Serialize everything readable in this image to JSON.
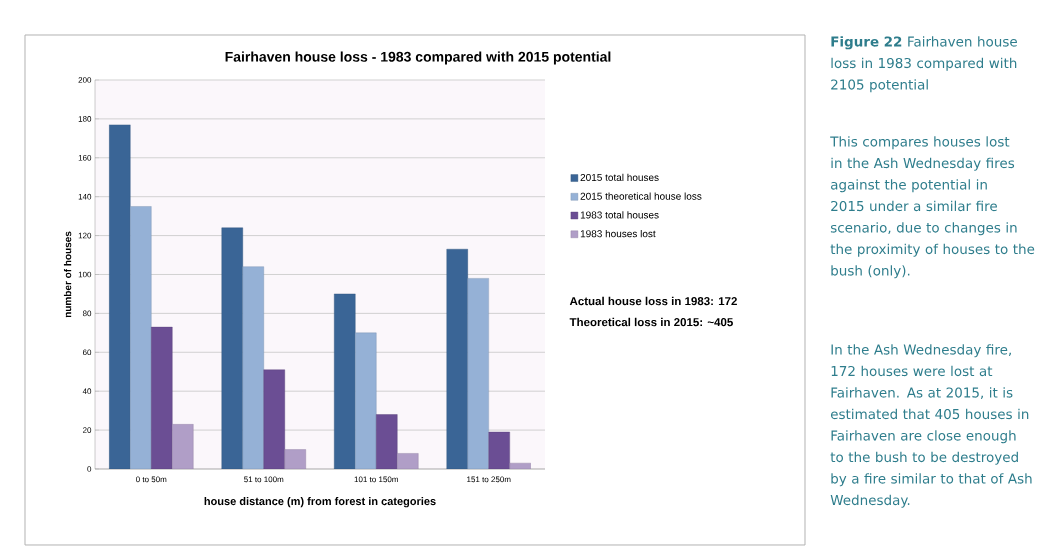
{
  "chart_data": {
    "type": "bar",
    "title": "Fairhaven house loss - 1983 compared with 2015 potential",
    "xlabel": "house distance (m) from forest  in categories",
    "ylabel": "number of houses",
    "categories": [
      "0 to 50m",
      "51 to 100m",
      "101 to 150m",
      "151 to 250m"
    ],
    "series": [
      {
        "name": "2015 total houses",
        "color": "#3a6596",
        "values": [
          177,
          124,
          90,
          113
        ]
      },
      {
        "name": "2015 theoretical house loss",
        "color": "#95b1d6",
        "values": [
          135,
          104,
          70,
          98
        ]
      },
      {
        "name": "1983 total houses",
        "color": "#6b4e94",
        "values": [
          73,
          51,
          28,
          19
        ]
      },
      {
        "name": "1983  houses lost",
        "color": "#b09ec7",
        "values": [
          23,
          10,
          8,
          3
        ]
      }
    ],
    "ylim": [
      0,
      200
    ],
    "yticks": [
      0,
      20,
      40,
      60,
      80,
      100,
      120,
      140,
      160,
      180,
      200
    ],
    "grid": "y",
    "legend": "right",
    "annotations": [
      "Actual house loss in 1983:   172",
      "Theoretical loss in 2015:    ~405",
      "**Figure 22**  Fairhaven house loss in 1983 compared with 2105 potential",
      "This compares houses lost in the Ash Wednesday fires against the potential in 2015 under a similar fire scenario, due to changes in the proximity of houses to the bush (only).",
      "In the Ash Wednesday fire, 172 houses were lost at Fairhaven.  As at 2015, it is estimated that 405 houses in Fairhaven are close enough to the bush to be destroyed by a fire similar to that of Ash Wednesday."
    ]
  }
}
